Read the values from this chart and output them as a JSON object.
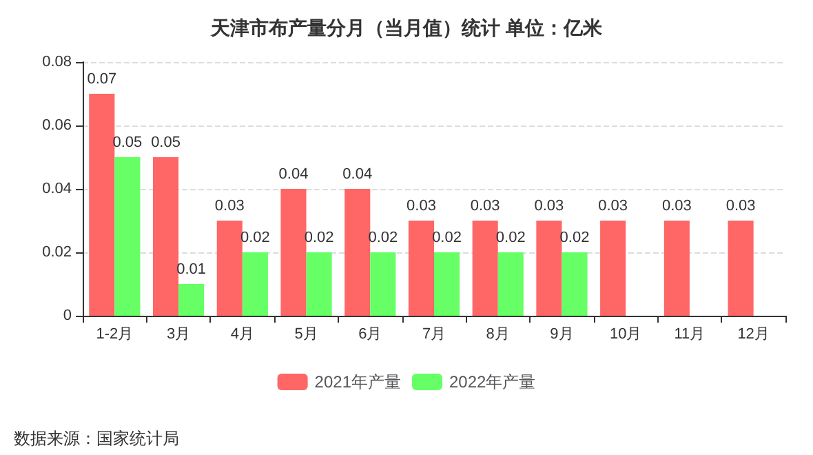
{
  "chart_data": {
    "type": "bar",
    "title": "天津市布产量分月（当月值）统计 单位：亿米",
    "categories": [
      "1-2月",
      "3月",
      "4月",
      "5月",
      "6月",
      "7月",
      "8月",
      "9月",
      "10月",
      "11月",
      "12月"
    ],
    "series": [
      {
        "name": "2021年产量",
        "color": "#ff6666",
        "values": [
          0.07,
          0.05,
          0.03,
          0.04,
          0.04,
          0.03,
          0.03,
          0.03,
          0.03,
          0.03,
          0.03
        ]
      },
      {
        "name": "2022年产量",
        "color": "#66ff66",
        "values": [
          0.05,
          0.01,
          0.02,
          0.02,
          0.02,
          0.02,
          0.02,
          0.02,
          null,
          null,
          null
        ]
      }
    ],
    "ylim": [
      0,
      0.08
    ],
    "yticks": [
      0,
      0.02,
      0.04,
      0.06,
      0.08
    ],
    "grid": "y",
    "legend": "bottom",
    "data_labels": true,
    "annotations": [
      "数据来源：国家统计局"
    ]
  }
}
